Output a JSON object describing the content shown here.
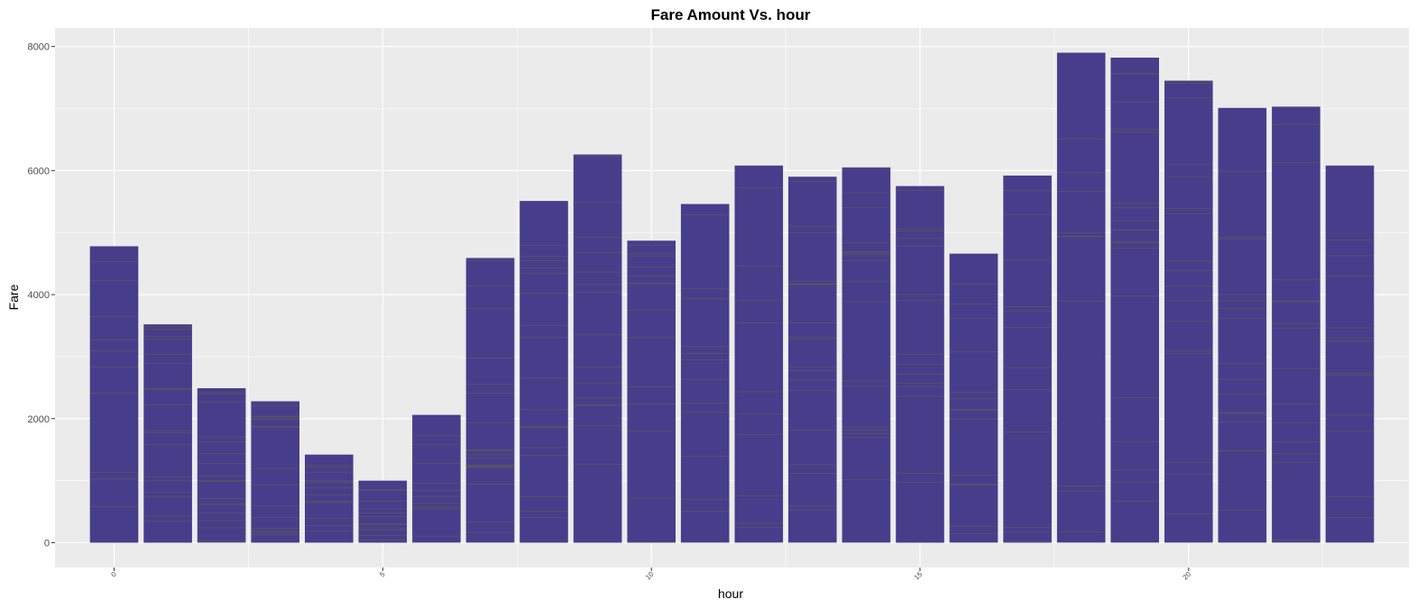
{
  "chart_data": {
    "type": "bar",
    "title": "Fare Amount Vs. hour",
    "xlabel": "hour",
    "ylabel": "Fare",
    "categories": [
      0,
      1,
      2,
      3,
      4,
      5,
      6,
      7,
      8,
      9,
      10,
      11,
      12,
      13,
      14,
      15,
      16,
      17,
      18,
      19,
      20,
      21,
      22,
      23
    ],
    "values": [
      4780,
      3520,
      2490,
      2280,
      1420,
      1000,
      2060,
      4590,
      5510,
      6260,
      4870,
      5460,
      6080,
      5900,
      6050,
      5750,
      4660,
      5920,
      7900,
      7820,
      7450,
      7010,
      7030,
      6080
    ],
    "x_tick_labels": [
      "0",
      "5",
      "10",
      "15",
      "20"
    ],
    "x_tick_values": [
      0,
      5,
      10,
      15,
      20
    ],
    "y_tick_labels": [
      "0",
      "2000",
      "4000",
      "6000",
      "8000"
    ],
    "y_tick_values": [
      0,
      2000,
      4000,
      6000,
      8000
    ],
    "xlim": [
      -1.1,
      24.1
    ],
    "ylim": [
      -400,
      8300
    ],
    "grid": true,
    "legend": "none",
    "colors": {
      "bar_fill": "#483D8B",
      "bar_segment_line": "#6b6b3a",
      "panel_background": "#EBEBEB",
      "grid_major": "#ffffff"
    }
  }
}
